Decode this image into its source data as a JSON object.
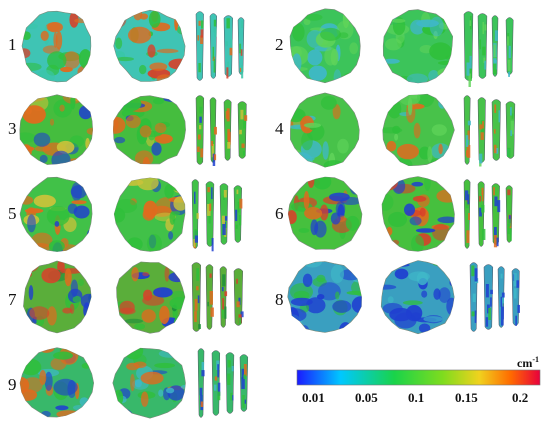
{
  "panels": [
    {
      "label": "1"
    },
    {
      "label": "2"
    },
    {
      "label": "3"
    },
    {
      "label": "4"
    },
    {
      "label": "5"
    },
    {
      "label": "6"
    },
    {
      "label": "7"
    },
    {
      "label": "8"
    },
    {
      "label": "9"
    }
  ],
  "colorbar": {
    "unit": "cm",
    "unit_exp": "-1",
    "ticks": [
      "0.01",
      "0.05",
      "0.1",
      "0.15",
      "0.2"
    ],
    "colors": [
      "#1a1aff",
      "#00c8ff",
      "#19d34a",
      "#7fdc1e",
      "#f0d21e",
      "#ff6a00",
      "#e8003c"
    ]
  }
}
